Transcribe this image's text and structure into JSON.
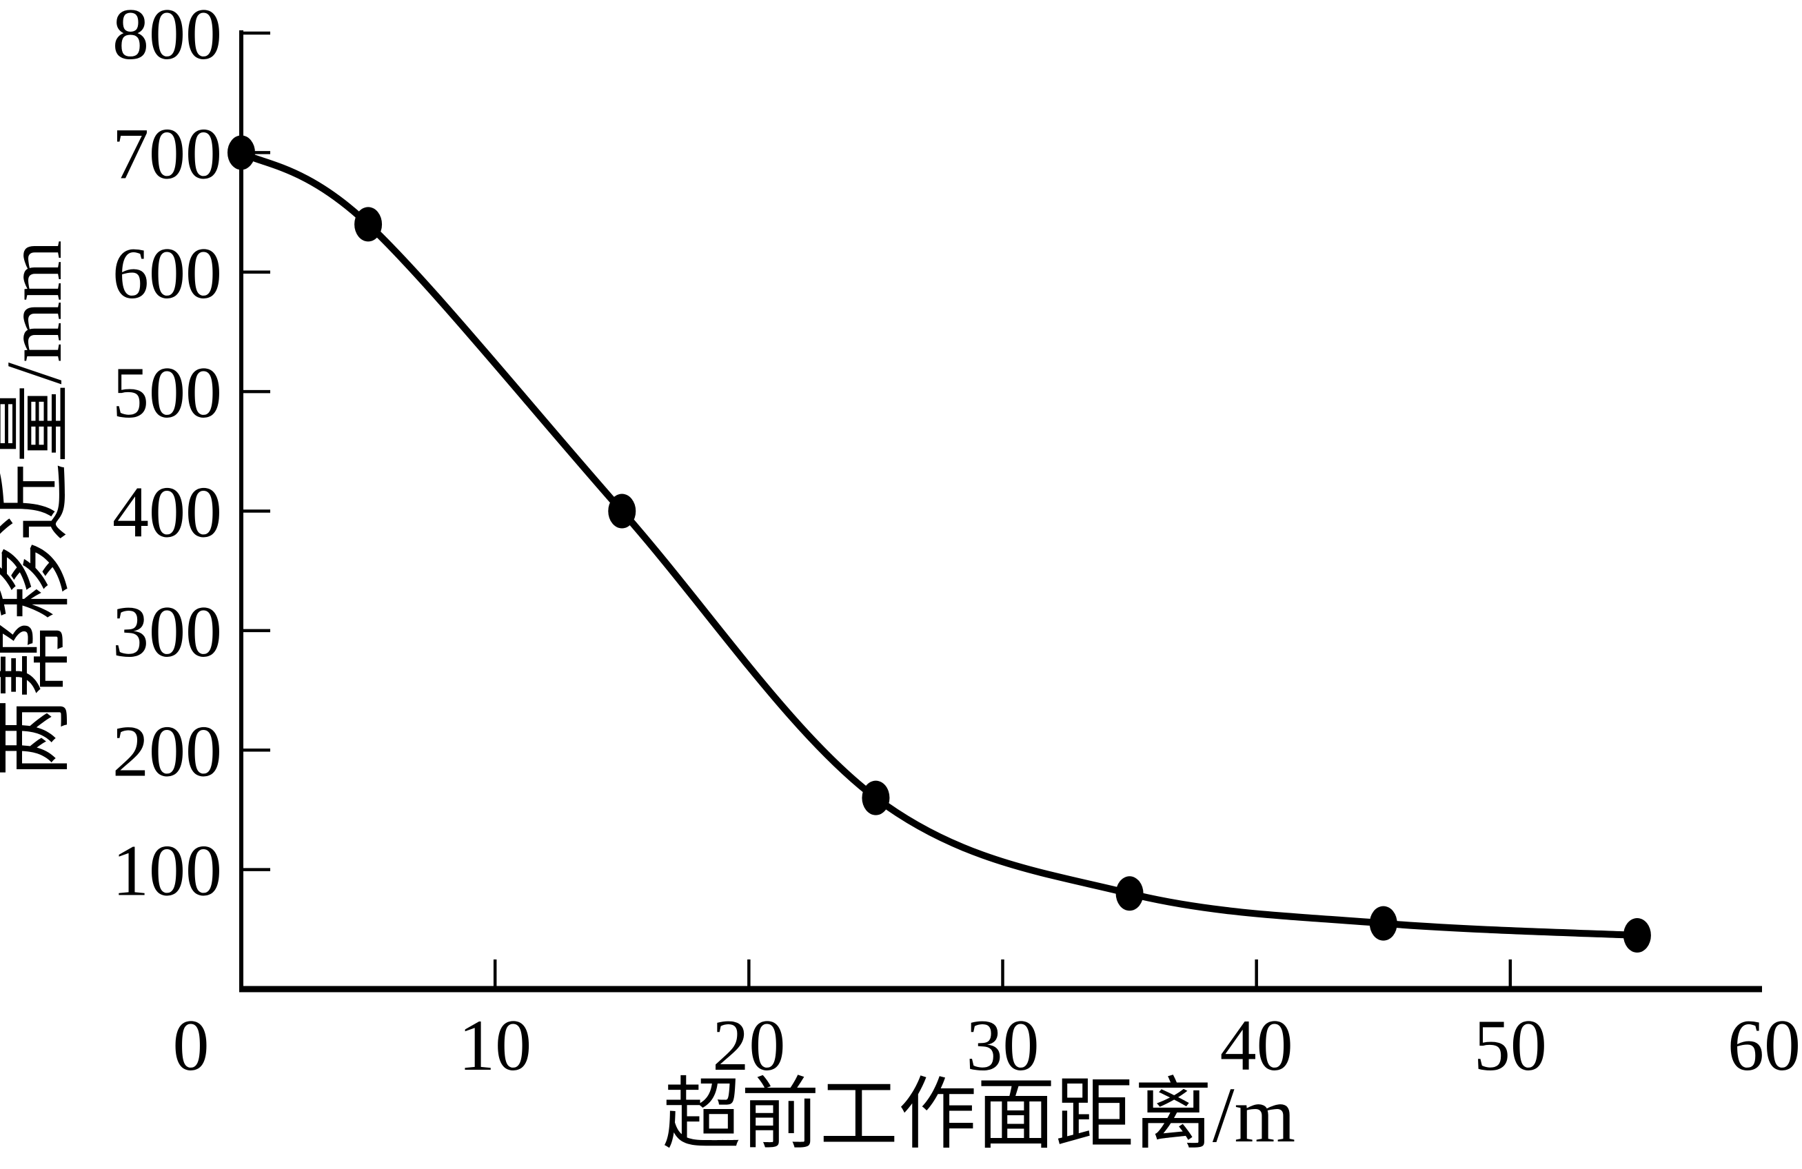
{
  "chart_data": {
    "type": "line",
    "title": "",
    "xlabel": "超前工作面距离/m",
    "ylabel": "两帮移近量/mm",
    "xlim": [
      0,
      60
    ],
    "ylim": [
      0,
      800
    ],
    "grid": false,
    "legend": "none",
    "background": "#ffffff",
    "ink_color": "#000000",
    "x_ticks": {
      "label_values": [
        0,
        10,
        20,
        30,
        40,
        50,
        60
      ],
      "labels": [
        "0",
        "10",
        "20",
        "30",
        "40",
        "50",
        "60"
      ],
      "mark_values": [
        10,
        20,
        30,
        40,
        50
      ]
    },
    "y_ticks": {
      "label_values": [
        100,
        200,
        300,
        400,
        500,
        600,
        700,
        800
      ],
      "labels": [
        "100",
        "200",
        "300",
        "400",
        "500",
        "600",
        "700",
        "800"
      ],
      "mark_values": [
        100,
        200,
        300,
        400,
        500,
        600,
        700,
        800
      ]
    },
    "series": [
      {
        "marker": "filled-circle",
        "color": "#000000",
        "x": [
          0,
          5,
          15,
          25,
          35,
          45,
          55
        ],
        "y": [
          700,
          640,
          400,
          160,
          80,
          55,
          45
        ]
      }
    ]
  }
}
